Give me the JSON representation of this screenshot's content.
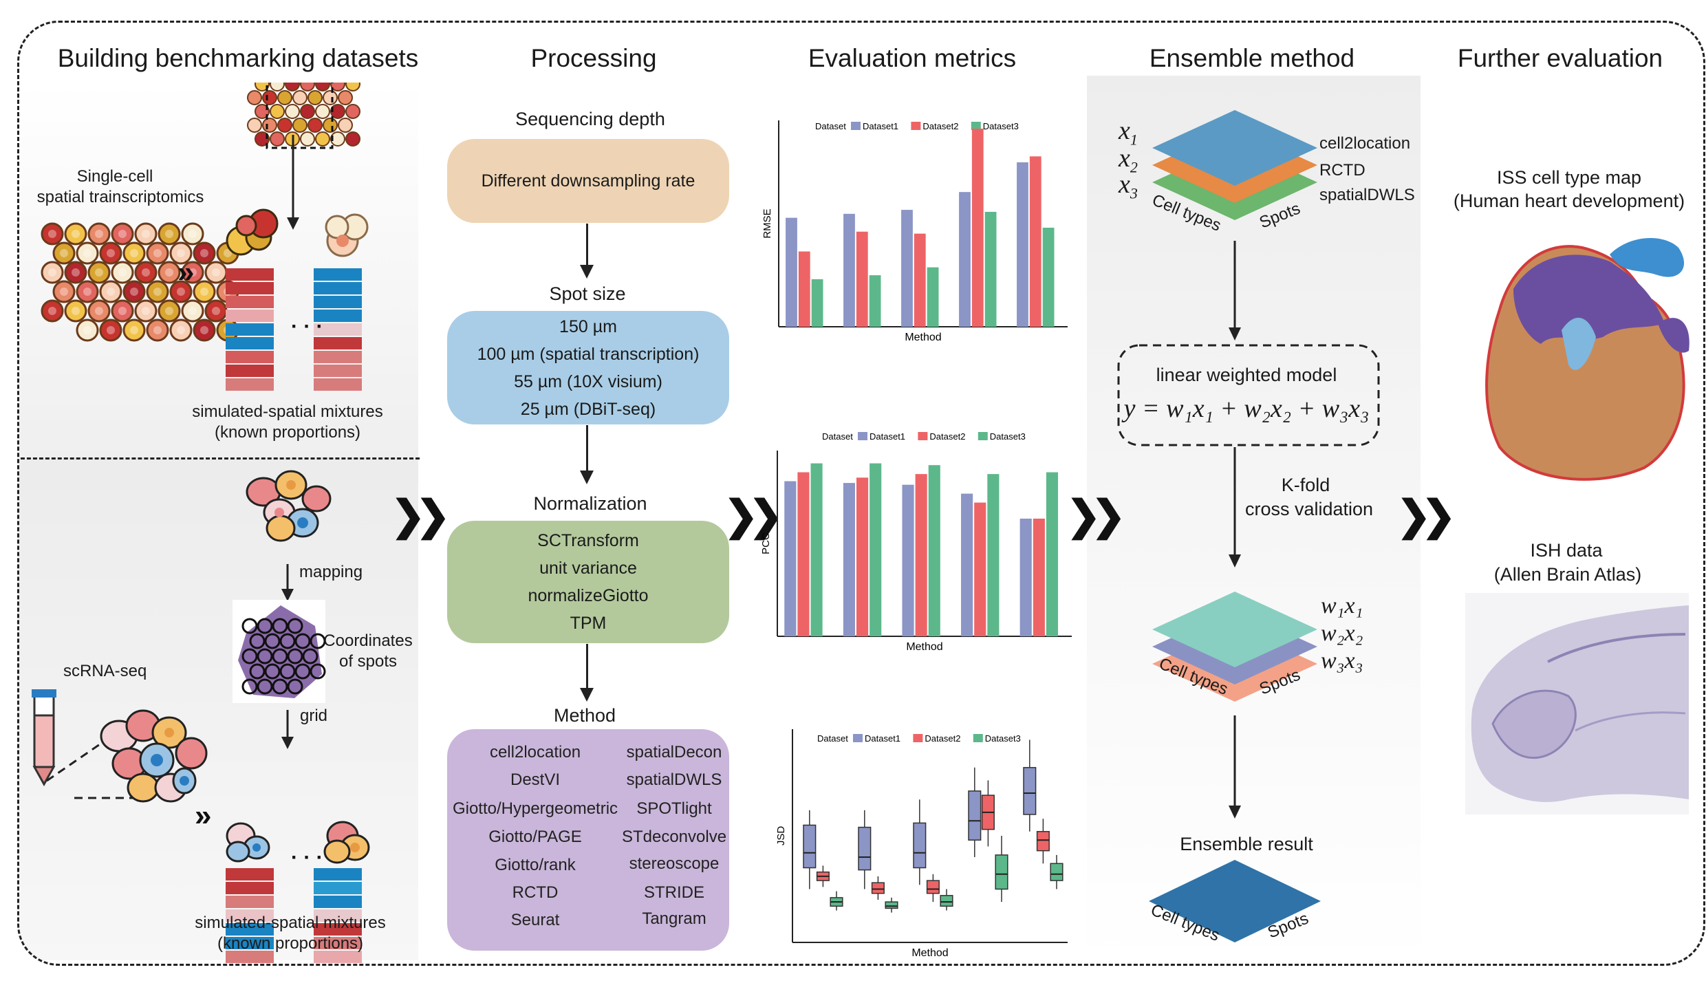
{
  "headers": {
    "col1": "Building benchmarking datasets",
    "col2": "Processing",
    "col3": "Evaluation metrics",
    "col4": "Ensemble method",
    "col5": "Further evaluation"
  },
  "datasets": {
    "sc_spatial_label_1": "Single-cell",
    "sc_spatial_label_2": "spatial  trainscriptomics",
    "sim_top_1": "simulated-spatial mixtures",
    "sim_top_2": "(known proportions)",
    "mapping": "mapping",
    "coords_1": "Coordinates",
    "coords_2": "of spots",
    "scrna": "scRNA-seq",
    "grid": "grid",
    "sim_bot_1": "simulated-spatial mixtures",
    "sim_bot_2": "(known proportions)"
  },
  "processing": {
    "seq_title": "Sequencing depth",
    "seq_box": "Different downsampling rate",
    "spot_title": "Spot size",
    "spot_items": [
      "150 µm",
      "100 µm (spatial transcription)",
      "55 µm (10X visium)",
      "25 µm (DBiT-seq)"
    ],
    "norm_title": "Normalization",
    "norm_items": [
      "SCTransform",
      "unit variance",
      "normalizeGiotto",
      "TPM"
    ],
    "method_title": "Method",
    "methods_left": [
      "cell2location",
      "DestVI",
      "Giotto/Hypergeometric",
      "Giotto/PAGE",
      "Giotto/rank",
      "RCTD",
      "Seurat"
    ],
    "methods_right": [
      "spatialDecon",
      "spatialDWLS",
      "SPOTlight",
      "STdeconvolve",
      "stereoscope",
      "STRIDE",
      "Tangram"
    ]
  },
  "legend": {
    "title": "Dataset",
    "names": [
      "Dataset1",
      "Dataset2",
      "Dataset3"
    ],
    "colors": [
      "#8b95c6",
      "#ee6466",
      "#5cb88a"
    ]
  },
  "chart_data": [
    {
      "type": "bar",
      "ylabel": "RMSE",
      "xlabel": "Method",
      "series": [
        {
          "name": "Dataset1",
          "values": [
            0.55,
            0.57,
            0.59,
            0.68,
            0.83
          ]
        },
        {
          "name": "Dataset2",
          "values": [
            0.38,
            0.48,
            0.47,
            1.0,
            0.86
          ]
        },
        {
          "name": "Dataset3",
          "values": [
            0.24,
            0.26,
            0.3,
            0.58,
            0.5
          ]
        }
      ]
    },
    {
      "type": "bar",
      "ylabel": "PCC",
      "xlabel": "Method",
      "series": [
        {
          "name": "Dataset1",
          "values": [
            0.87,
            0.86,
            0.85,
            0.8,
            0.66
          ]
        },
        {
          "name": "Dataset2",
          "values": [
            0.92,
            0.89,
            0.91,
            0.75,
            0.66
          ]
        },
        {
          "name": "Dataset3",
          "values": [
            0.97,
            0.97,
            0.96,
            0.91,
            0.92
          ]
        }
      ]
    },
    {
      "type": "box",
      "ylabel": "JSD",
      "xlabel": "Method",
      "series": [
        {
          "name": "Dataset1",
          "boxes": [
            [
              0.25,
              0.35,
              0.42,
              0.55,
              0.62
            ],
            [
              0.25,
              0.34,
              0.4,
              0.54,
              0.62
            ],
            [
              0.27,
              0.35,
              0.42,
              0.56,
              0.67
            ],
            [
              0.4,
              0.48,
              0.57,
              0.71,
              0.82
            ],
            [
              0.52,
              0.6,
              0.7,
              0.82,
              0.95
            ]
          ]
        },
        {
          "name": "Dataset2",
          "boxes": [
            [
              0.26,
              0.29,
              0.31,
              0.33,
              0.36
            ],
            [
              0.2,
              0.23,
              0.25,
              0.28,
              0.31
            ],
            [
              0.19,
              0.23,
              0.25,
              0.29,
              0.32
            ],
            [
              0.45,
              0.53,
              0.61,
              0.69,
              0.76
            ],
            [
              0.37,
              0.43,
              0.48,
              0.52,
              0.58
            ]
          ]
        },
        {
          "name": "Dataset3",
          "boxes": [
            [
              0.15,
              0.17,
              0.19,
              0.21,
              0.24
            ],
            [
              0.14,
              0.16,
              0.17,
              0.19,
              0.21
            ],
            [
              0.15,
              0.17,
              0.19,
              0.22,
              0.25
            ],
            [
              0.19,
              0.25,
              0.32,
              0.41,
              0.5
            ],
            [
              0.25,
              0.29,
              0.32,
              0.37,
              0.41
            ]
          ]
        }
      ]
    }
  ],
  "ensemble": {
    "x1": "x",
    "sub1": "1",
    "sub2": "2",
    "sub3": "3",
    "layer_methods": [
      "cell2location",
      "RCTD",
      "spatialDWLS"
    ],
    "cell_types": "Cell types",
    "spots": "Spots",
    "model_title": "linear weighted model",
    "model_eq": "y = w₁x₁ + w₂x₂ + w₃x₃",
    "kfold_1": "K-fold",
    "kfold_2": "cross validation",
    "weighted": [
      "w₁x₁",
      "w₂x₂",
      "w₃x₃"
    ],
    "result": "Ensemble result",
    "colors": [
      "#5b9ac4",
      "#e68a45",
      "#6cb66d",
      "#88cfc1",
      "#8a92c4",
      "#f3a287",
      "#2f73a8"
    ]
  },
  "further": {
    "iss_1": "ISS cell type map",
    "iss_2": "(Human heart development)",
    "ish_1": "ISH data",
    "ish_2": "(Allen Brain Atlas)"
  }
}
